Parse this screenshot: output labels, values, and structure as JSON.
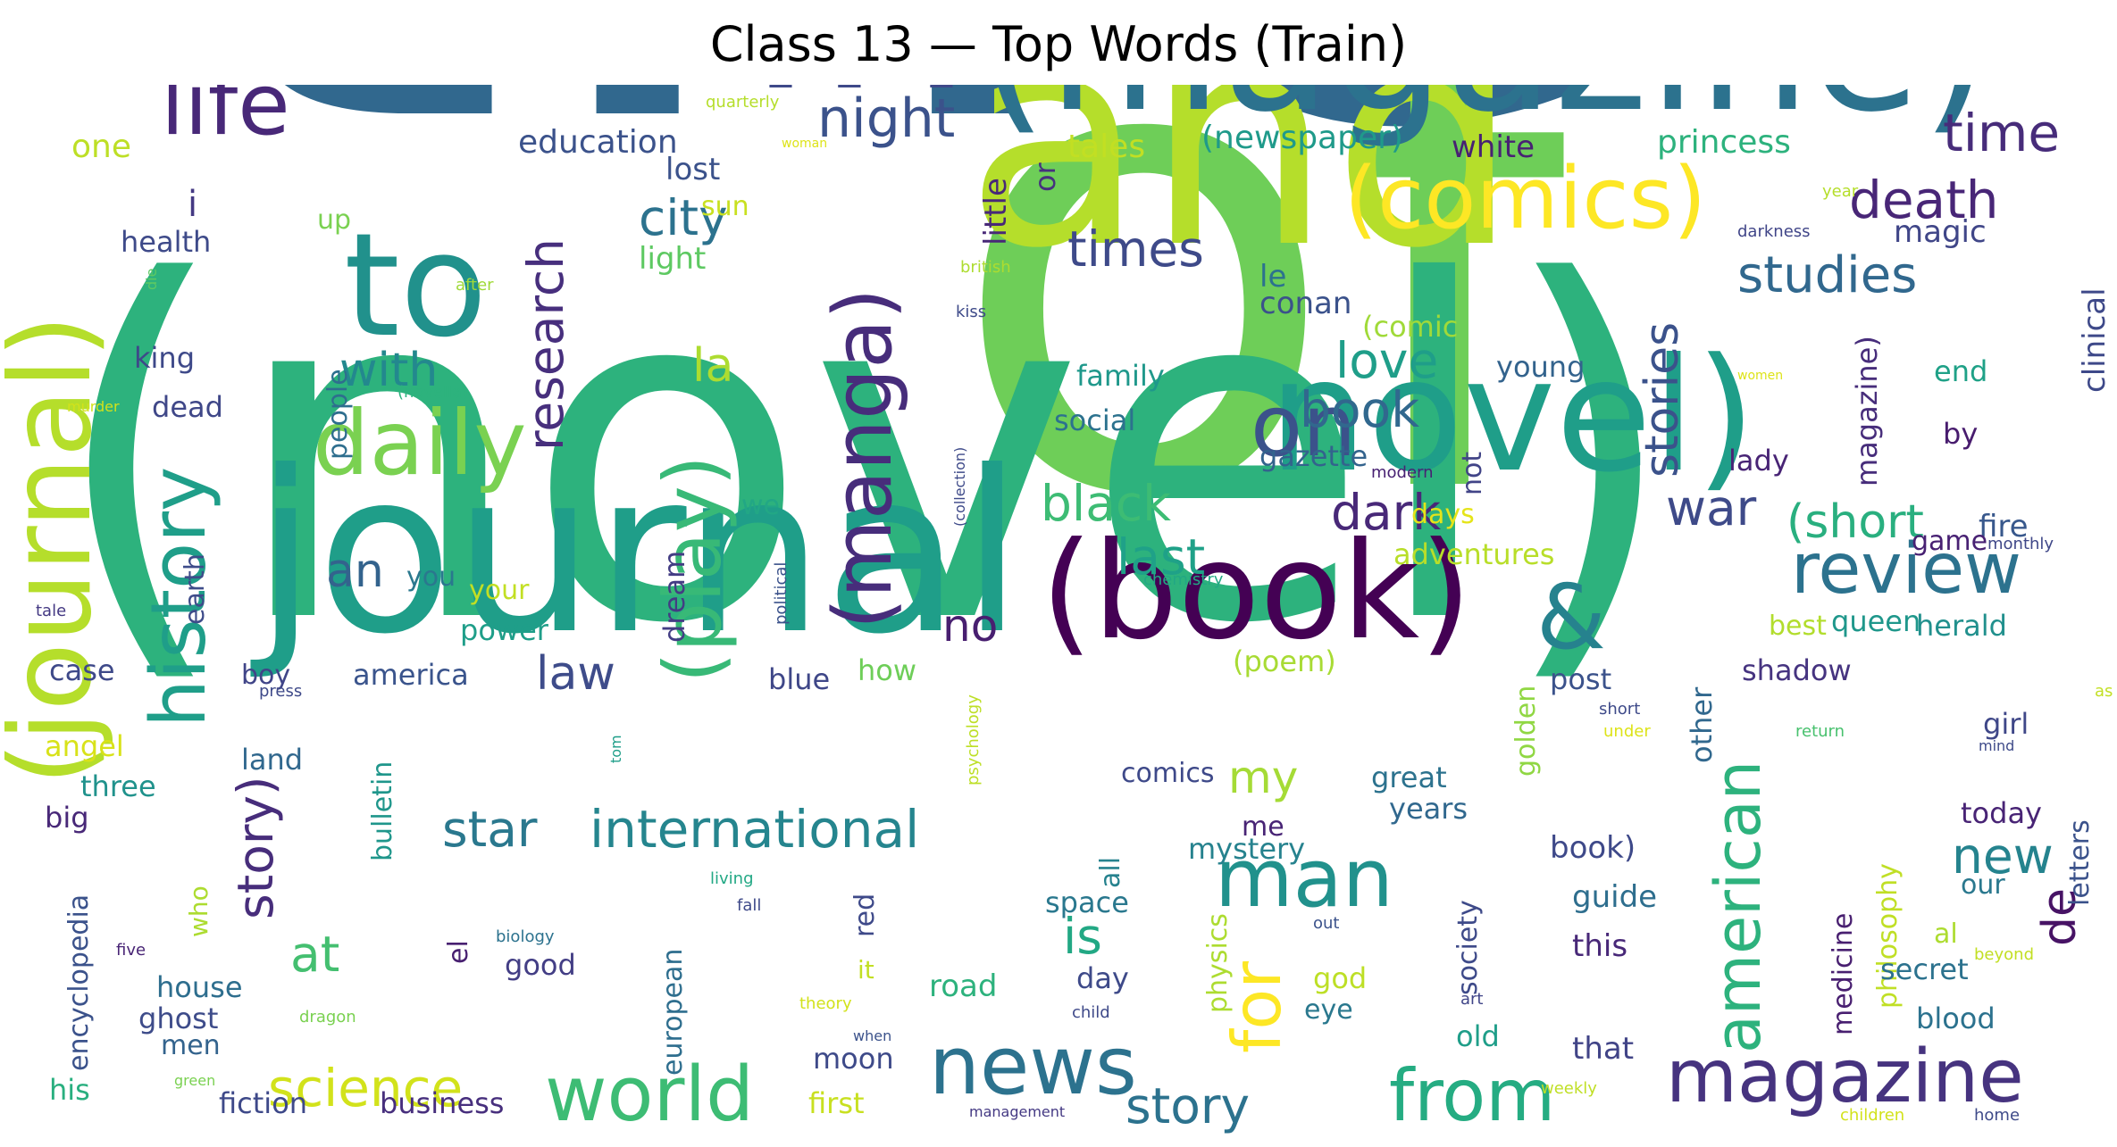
{
  "title": "Class 13 — Top Words (Train)",
  "words": [
    {
      "t": "the",
      "c": "#31688e",
      "r": 0
    },
    {
      "t": "of",
      "c": "#6ece58",
      "r": 0
    },
    {
      "t": "(novel)",
      "c": "#2db27d",
      "r": 0
    },
    {
      "t": "and",
      "c": "#b5de2b",
      "r": 0
    },
    {
      "t": "a",
      "c": "#b5de2b",
      "r": 0
    },
    {
      "t": "in",
      "c": "#3e4989",
      "r": 0
    },
    {
      "t": "(magazine)",
      "c": "#2c728e",
      "r": 0
    },
    {
      "t": "journal",
      "c": "#1f9e89",
      "r": 0
    },
    {
      "t": "novel)",
      "c": "#1f9e89",
      "r": 0
    },
    {
      "t": "(book)",
      "c": "#440154",
      "r": 0
    },
    {
      "t": "to",
      "c": "#21918c",
      "r": 0
    },
    {
      "t": "(journal)",
      "c": "#b5de2b",
      "r": -90
    },
    {
      "t": "(comics)",
      "c": "#fde725",
      "r": 0
    },
    {
      "t": "on",
      "c": "#3b528b",
      "r": 0
    },
    {
      "t": "&",
      "c": "#26828e",
      "r": 0
    },
    {
      "t": "daily",
      "c": "#7ad151",
      "r": 0
    },
    {
      "t": "life",
      "c": "#482878",
      "r": 0
    },
    {
      "t": "history",
      "c": "#1f9e89",
      "r": -90
    },
    {
      "t": "(manga)",
      "c": "#472d7b",
      "r": -90
    },
    {
      "t": "(play)",
      "c": "#38b977",
      "r": -90
    },
    {
      "t": "magazine",
      "c": "#46337f",
      "r": 0
    },
    {
      "t": "news",
      "c": "#2c728e",
      "r": 0
    },
    {
      "t": "world",
      "c": "#3dbc74",
      "r": 0
    },
    {
      "t": "from",
      "c": "#25ac82",
      "r": 0
    },
    {
      "t": "review",
      "c": "#2c728e",
      "r": 0
    },
    {
      "t": "american",
      "c": "#2db27d",
      "r": -90
    },
    {
      "t": "man",
      "c": "#21918c",
      "r": 0
    },
    {
      "t": "for",
      "c": "#fde725",
      "r": -90
    },
    {
      "t": "international",
      "c": "#25858e",
      "r": 0
    },
    {
      "t": "night",
      "c": "#3b528b",
      "r": 0
    },
    {
      "t": "time",
      "c": "#472c7a",
      "r": 0
    },
    {
      "t": "death",
      "c": "#482677",
      "r": 0
    },
    {
      "t": "studies",
      "c": "#31688e",
      "r": 0
    },
    {
      "t": "times",
      "c": "#3e4a89",
      "r": 0
    },
    {
      "t": "city",
      "c": "#2c728e",
      "r": 0
    },
    {
      "t": "research",
      "c": "#472f7d",
      "r": -90
    },
    {
      "t": "stories",
      "c": "#3b528b",
      "r": -90
    },
    {
      "t": "book",
      "c": "#31688e",
      "r": 0
    },
    {
      "t": "love",
      "c": "#1f9e89",
      "r": 0
    },
    {
      "t": "dark",
      "c": "#482878",
      "r": 0
    },
    {
      "t": "black",
      "c": "#3dbc74",
      "r": 0
    },
    {
      "t": "last",
      "c": "#1fa188",
      "r": 0
    },
    {
      "t": "(short",
      "c": "#29af7f",
      "r": 0
    },
    {
      "t": "war",
      "c": "#3e4a89",
      "r": 0
    },
    {
      "t": "with",
      "c": "#23888e",
      "r": 0
    },
    {
      "t": "story)",
      "c": "#472d7b",
      "r": -90
    },
    {
      "t": "story",
      "c": "#2c728e",
      "r": 0
    },
    {
      "t": "science",
      "c": "#d2e21b",
      "r": 0
    },
    {
      "t": "is",
      "c": "#22a884",
      "r": 0
    },
    {
      "t": "at",
      "c": "#44bf70",
      "r": 0
    },
    {
      "t": "star",
      "c": "#2a788e",
      "r": 0
    },
    {
      "t": "law",
      "c": "#3e4c8a",
      "r": 0
    },
    {
      "t": "an",
      "c": "#33638d",
      "r": 0
    },
    {
      "t": "la",
      "c": "#addc30",
      "r": 0
    },
    {
      "t": "no",
      "c": "#481f70",
      "r": 0
    },
    {
      "t": "my",
      "c": "#a5db36",
      "r": 0
    },
    {
      "t": "new",
      "c": "#25838e",
      "r": 0
    },
    {
      "t": "de",
      "c": "#471365",
      "r": -90
    },
    {
      "t": "i",
      "c": "#443983",
      "r": 0
    },
    {
      "t": "(newspaper)",
      "c": "#1f9a8a",
      "r": 0
    },
    {
      "t": "princess",
      "c": "#2db27d",
      "r": 0
    },
    {
      "t": "education",
      "c": "#3b528b",
      "r": 0
    },
    {
      "t": "white",
      "c": "#482173",
      "r": 0
    },
    {
      "t": "one",
      "c": "#bddf26",
      "r": 0
    },
    {
      "t": "tales",
      "c": "#c2df23",
      "r": 0
    },
    {
      "t": "sun",
      "c": "#c8e020",
      "r": 0
    },
    {
      "t": "lost",
      "c": "#3b528b",
      "r": 0
    },
    {
      "t": "health",
      "c": "#3e4a89",
      "r": 0
    },
    {
      "t": "up",
      "c": "#7ad151",
      "r": 0
    },
    {
      "t": "light",
      "c": "#5ec962",
      "r": 0
    },
    {
      "t": "little",
      "c": "#482878",
      "r": -90
    },
    {
      "t": "or",
      "c": "#46327e",
      "r": -90
    },
    {
      "t": "magic",
      "c": "#404688",
      "r": 0
    },
    {
      "t": "clinical",
      "c": "#3e4989",
      "r": -90
    },
    {
      "t": "le",
      "c": "#2c728e",
      "r": 0
    },
    {
      "t": "conan",
      "c": "#3b528b",
      "r": 0
    },
    {
      "t": "(comic",
      "c": "#a0da39",
      "r": 0
    },
    {
      "t": "young",
      "c": "#33638d",
      "r": 0
    },
    {
      "t": "end",
      "c": "#1fa187",
      "r": 0
    },
    {
      "t": "family",
      "c": "#1f988b",
      "r": 0
    },
    {
      "t": "social",
      "c": "#2c728e",
      "r": 0
    },
    {
      "t": "king",
      "c": "#3e4989",
      "r": 0
    },
    {
      "t": "dead",
      "c": "#3f4788",
      "r": 0
    },
    {
      "t": "people",
      "c": "#2e6e8e",
      "r": -90
    },
    {
      "t": "gazette",
      "c": "#33638d",
      "r": 0
    },
    {
      "t": "not",
      "c": "#414487",
      "r": -90
    },
    {
      "t": "magazine)",
      "c": "#472d7b",
      "r": -90
    },
    {
      "t": "lady",
      "c": "#482475",
      "r": 0
    },
    {
      "t": "by",
      "c": "#481c6e",
      "r": 0
    },
    {
      "t": "fire",
      "c": "#38588c",
      "r": 0
    },
    {
      "t": "we",
      "c": "#22a785",
      "r": 0
    },
    {
      "t": "days",
      "c": "#e5e419",
      "r": 0
    },
    {
      "t": "adventures",
      "c": "#b8de29",
      "r": 0
    },
    {
      "t": "earth",
      "c": "#3e4c8a",
      "r": -90
    },
    {
      "t": "you",
      "c": "#2a788e",
      "r": 0
    },
    {
      "t": "your",
      "c": "#c2df23",
      "r": 0
    },
    {
      "t": "dream",
      "c": "#433d84",
      "r": -90
    },
    {
      "t": "game",
      "c": "#482173",
      "r": 0
    },
    {
      "t": "power",
      "c": "#1f9e89",
      "r": 0
    },
    {
      "t": "best",
      "c": "#b2dd2d",
      "r": 0
    },
    {
      "t": "queen",
      "c": "#1f978b",
      "r": 0
    },
    {
      "t": "herald",
      "c": "#21908d",
      "r": 0
    },
    {
      "t": "case",
      "c": "#3e4989",
      "r": 0
    },
    {
      "t": "boy",
      "c": "#404588",
      "r": 0
    },
    {
      "t": "america",
      "c": "#3a548c",
      "r": 0
    },
    {
      "t": "blue",
      "c": "#3f4788",
      "r": 0
    },
    {
      "t": "how",
      "c": "#6ece58",
      "r": 0
    },
    {
      "t": "(poem)",
      "c": "#a8db34",
      "r": 0
    },
    {
      "t": "post",
      "c": "#3b528b",
      "r": 0
    },
    {
      "t": "shadow",
      "c": "#463480",
      "r": 0
    },
    {
      "t": "other",
      "c": "#31688e",
      "r": -90
    },
    {
      "t": "golden",
      "c": "#90d743",
      "r": -90
    },
    {
      "t": "angel",
      "c": "#d8e219",
      "r": 0
    },
    {
      "t": "land",
      "c": "#31688e",
      "r": 0
    },
    {
      "t": "bulletin",
      "c": "#1f968b",
      "r": -90
    },
    {
      "t": "comics",
      "c": "#3e4989",
      "r": 0
    },
    {
      "t": "great",
      "c": "#2c728e",
      "r": 0
    },
    {
      "t": "girl",
      "c": "#3f4788",
      "r": 0
    },
    {
      "t": "three",
      "c": "#20928c",
      "r": 0
    },
    {
      "t": "years",
      "c": "#31688e",
      "r": 0
    },
    {
      "t": "big",
      "c": "#482878",
      "r": 0
    },
    {
      "t": "today",
      "c": "#482475",
      "r": 0
    },
    {
      "t": "me",
      "c": "#482475",
      "r": 0
    },
    {
      "t": "all",
      "c": "#26828e",
      "r": -90
    },
    {
      "t": "mystery",
      "c": "#26828e",
      "r": 0
    },
    {
      "t": "book)",
      "c": "#3e4989",
      "r": 0
    },
    {
      "t": "letters",
      "c": "#3b528b",
      "r": -90
    },
    {
      "t": "encyclopedia",
      "c": "#3b528b",
      "r": -90
    },
    {
      "t": "who",
      "c": "#addc30",
      "r": -90
    },
    {
      "t": "space",
      "c": "#2a788e",
      "r": 0
    },
    {
      "t": "physics",
      "c": "#addc30",
      "r": -90
    },
    {
      "t": "society",
      "c": "#3e4a89",
      "r": -90
    },
    {
      "t": "guide",
      "c": "#2e6e8e",
      "r": 0
    },
    {
      "t": "medicine",
      "c": "#481f70",
      "r": -90
    },
    {
      "t": "philosophy",
      "c": "#c0df25",
      "r": -90
    },
    {
      "t": "our",
      "c": "#2a788e",
      "r": 0
    },
    {
      "t": "el",
      "c": "#482071",
      "r": -90
    },
    {
      "t": "red",
      "c": "#3e4989",
      "r": -90
    },
    {
      "t": "this",
      "c": "#482878",
      "r": 0
    },
    {
      "t": "al",
      "c": "#addc30",
      "r": 0
    },
    {
      "t": "house",
      "c": "#2e6e8e",
      "r": 0
    },
    {
      "t": "good",
      "c": "#433e85",
      "r": 0
    },
    {
      "t": "european",
      "c": "#2e6e8e",
      "r": -90
    },
    {
      "t": "road",
      "c": "#2db27d",
      "r": 0
    },
    {
      "t": "day",
      "c": "#3e4a89",
      "r": 0
    },
    {
      "t": "god",
      "c": "#bddf26",
      "r": 0
    },
    {
      "t": "eye",
      "c": "#2a788e",
      "r": 0
    },
    {
      "t": "secret",
      "c": "#2c728e",
      "r": 0
    },
    {
      "t": "ghost",
      "c": "#3e4c8a",
      "r": 0
    },
    {
      "t": "it",
      "c": "#c2df23",
      "r": 0
    },
    {
      "t": "blood",
      "c": "#2c728e",
      "r": 0
    },
    {
      "t": "men",
      "c": "#33638d",
      "r": 0
    },
    {
      "t": "old",
      "c": "#1f9e89",
      "r": 0
    },
    {
      "t": "that",
      "c": "#414487",
      "r": 0
    },
    {
      "t": "moon",
      "c": "#3e4a89",
      "r": 0
    },
    {
      "t": "his",
      "c": "#29af7f",
      "r": 0
    },
    {
      "t": "fiction",
      "c": "#3e4989",
      "r": 0
    },
    {
      "t": "business",
      "c": "#472f7d",
      "r": 0
    },
    {
      "t": "first",
      "c": "#c8e020",
      "r": 0
    },
    {
      "t": "quarterly",
      "c": "#b5de2b",
      "r": 0
    },
    {
      "t": "woman",
      "c": "#dde318",
      "r": 0
    },
    {
      "t": "year",
      "c": "#b5de2b",
      "r": 0
    },
    {
      "t": "darkness",
      "c": "#404588",
      "r": 0
    },
    {
      "t": "british",
      "c": "#addc30",
      "r": 0
    },
    {
      "t": "kiss",
      "c": "#3e4a89",
      "r": 0
    },
    {
      "t": "after",
      "c": "#a0da39",
      "r": 0
    },
    {
      "t": "die",
      "c": "#5ec962",
      "r": -90
    },
    {
      "t": "murder",
      "c": "#d2e21b",
      "r": 0
    },
    {
      "t": "(novella)",
      "c": "#2db27d",
      "r": 0
    },
    {
      "t": "women",
      "c": "#dde318",
      "r": 0
    },
    {
      "t": "(collection)",
      "c": "#3e4a89",
      "r": -90
    },
    {
      "t": "modern",
      "c": "#482173",
      "r": 0
    },
    {
      "t": "monthly",
      "c": "#3f4788",
      "r": 0
    },
    {
      "t": "chemistry",
      "c": "#22a884",
      "r": 0
    },
    {
      "t": "tale",
      "c": "#443983",
      "r": 0
    },
    {
      "t": "press",
      "c": "#3e4989",
      "r": 0
    },
    {
      "t": "political",
      "c": "#3b528b",
      "r": -90
    },
    {
      "t": "tom",
      "c": "#1f9e89",
      "r": -90
    },
    {
      "t": "psychology",
      "c": "#bddf26",
      "r": -90
    },
    {
      "t": "short",
      "c": "#3e4a89",
      "r": 0
    },
    {
      "t": "under",
      "c": "#dde318",
      "r": 0
    },
    {
      "t": "return",
      "c": "#48c16e",
      "r": 0
    },
    {
      "t": "mind",
      "c": "#3e4a89",
      "r": 0
    },
    {
      "t": "as",
      "c": "#c2df23",
      "r": 0
    },
    {
      "t": "living",
      "c": "#22a884",
      "r": 0
    },
    {
      "t": "fall",
      "c": "#3e4989",
      "r": 0
    },
    {
      "t": "five",
      "c": "#482475",
      "r": 0
    },
    {
      "t": "biology",
      "c": "#2c728e",
      "r": 0
    },
    {
      "t": "out",
      "c": "#3b528b",
      "r": 0
    },
    {
      "t": "beyond",
      "c": "#c2df23",
      "r": 0
    },
    {
      "t": "theory",
      "c": "#d2e21b",
      "r": 0
    },
    {
      "t": "art",
      "c": "#404588",
      "r": 0
    },
    {
      "t": "dragon",
      "c": "#7ad151",
      "r": 0
    },
    {
      "t": "child",
      "c": "#3e4989",
      "r": 0
    },
    {
      "t": "when",
      "c": "#3b528b",
      "r": 0
    },
    {
      "t": "green",
      "c": "#7ad151",
      "r": 0
    },
    {
      "t": "weekly",
      "c": "#c0df25",
      "r": 0
    },
    {
      "t": "management",
      "c": "#443983",
      "r": 0
    },
    {
      "t": "children",
      "c": "#d2e21b",
      "r": 0
    },
    {
      "t": "home",
      "c": "#3e4a89",
      "r": 0
    }
  ]
}
